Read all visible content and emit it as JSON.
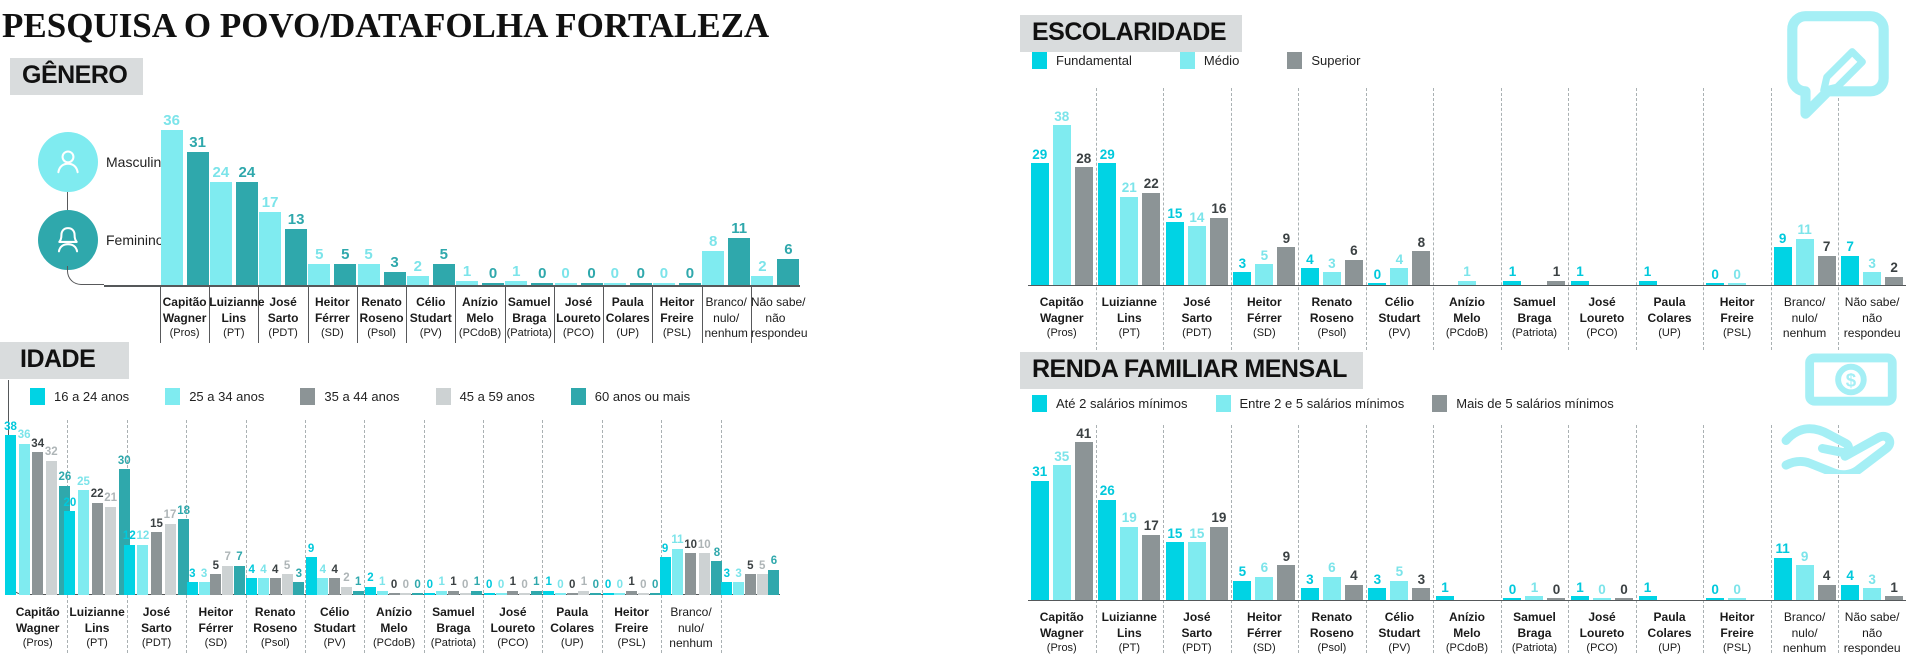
{
  "page_title": "PESQUISA O POVO/DATAFOLHA FORTALEZA",
  "colors": {
    "bright_cyan": "#00D3E4",
    "light_cyan": "#7FEBF0",
    "teal": "#2FA8AC",
    "dark_gray": "#8C9496",
    "light_gray": "#CDD2D3",
    "chip_bg": "#D9DCDD",
    "axis": "#55585A",
    "separator": "#AAB1B3",
    "icon_cyan": "#A5EFF5",
    "text": "#1A1A1A"
  },
  "icons": {
    "gender_male": "male-person-icon",
    "gender_female": "female-person-icon",
    "escolaridade": "speech-bubble-pencil-icon",
    "renda": "hand-holding-money-icon"
  },
  "chart_data": [
    {
      "id": "genero",
      "type": "bar",
      "title": "GÊNERO",
      "legend_position": "left-icons",
      "grid": false,
      "ylim": [
        0,
        40
      ],
      "series": [
        {
          "name": "Masculino",
          "color": "#7FEBF0",
          "label_color": "#7CE4EA"
        },
        {
          "name": "Feminino",
          "color": "#2FA8AC",
          "label_color": "#2FA8AC"
        }
      ],
      "categories": [
        "Capitão Wagner (Pros)",
        "Luizianne Lins (PT)",
        "José Sarto (PDT)",
        "Heitor Férrer (SD)",
        "Renato Roseno (Psol)",
        "Célio Studart (PV)",
        "Anízio Melo (PCdoB)",
        "Samuel Braga (Patriota)",
        "José Loureto (PCO)",
        "Paula Colares (UP)",
        "Heitor Freire (PSL)",
        "Branco/nulo/nenhum",
        "Não sabe/não respondeu"
      ],
      "groups": [
        {
          "label_lines": [
            "Capitão",
            "Wagner"
          ],
          "party": "(Pros)",
          "bold": true,
          "values": [
            36,
            31
          ]
        },
        {
          "label_lines": [
            "Luizianne",
            "Lins"
          ],
          "party": "(PT)",
          "bold": true,
          "values": [
            24,
            24
          ]
        },
        {
          "label_lines": [
            "José",
            "Sarto"
          ],
          "party": "(PDT)",
          "bold": true,
          "values": [
            17,
            13
          ]
        },
        {
          "label_lines": [
            "Heitor",
            "Férrer"
          ],
          "party": "(SD)",
          "bold": true,
          "values": [
            5,
            5
          ]
        },
        {
          "label_lines": [
            "Renato",
            "Roseno"
          ],
          "party": "(Psol)",
          "bold": true,
          "values": [
            5,
            3
          ]
        },
        {
          "label_lines": [
            "Célio",
            "Studart"
          ],
          "party": "(PV)",
          "bold": true,
          "values": [
            2,
            5
          ]
        },
        {
          "label_lines": [
            "Anízio",
            "Melo"
          ],
          "party": "(PCdoB)",
          "bold": true,
          "values": [
            1,
            0
          ]
        },
        {
          "label_lines": [
            "Samuel",
            "Braga"
          ],
          "party": "(Patriota)",
          "bold": true,
          "values": [
            1,
            0
          ]
        },
        {
          "label_lines": [
            "José",
            "Loureto"
          ],
          "party": "(PCO)",
          "bold": true,
          "values": [
            0,
            0
          ]
        },
        {
          "label_lines": [
            "Paula",
            "Colares"
          ],
          "party": "(UP)",
          "bold": true,
          "values": [
            0,
            0
          ]
        },
        {
          "label_lines": [
            "Heitor",
            "Freire"
          ],
          "party": "(PSL)",
          "bold": true,
          "values": [
            0,
            0
          ]
        },
        {
          "label_lines": [
            "Branco/",
            "nulo/",
            "nenhum"
          ],
          "party": "",
          "bold": false,
          "values": [
            8,
            11
          ]
        },
        {
          "label_lines": [
            "Não sabe/",
            "não",
            "respondeu"
          ],
          "party": "",
          "bold": false,
          "values": [
            2,
            6
          ]
        }
      ]
    },
    {
      "id": "idade",
      "type": "bar",
      "title": "IDADE",
      "legend_position": "top",
      "grid": false,
      "ylim": [
        0,
        40
      ],
      "series": [
        {
          "name": "16 a 24 anos",
          "color": "#00D3E4",
          "label_color": "#00C9DC"
        },
        {
          "name": "25 a 34 anos",
          "color": "#7FEBF0",
          "label_color": "#7CE4EA"
        },
        {
          "name": "35 a 44 anos",
          "color": "#8C9496",
          "label_color": "#3B4143"
        },
        {
          "name": "45 a 59 anos",
          "color": "#CDD2D3",
          "label_color": "#AEB5B7"
        },
        {
          "name": "60 anos ou mais",
          "color": "#2FA8AC",
          "label_color": "#2FA8AC"
        }
      ],
      "categories": [
        "Capitão Wagner (Pros)",
        "Luizianne Lins (PT)",
        "José Sarto (PDT)",
        "Heitor Férrer (SD)",
        "Renato Roseno (Psol)",
        "Célio Studart (PV)",
        "Anízio Melo (PCdoB)",
        "Samuel Braga (Patriota)",
        "José Loureto (PCO)",
        "Paula Colares (UP)",
        "Heitor Freire (PSL)",
        "Branco/nulo/nenhum",
        ""
      ],
      "groups": [
        {
          "label_lines": [
            "Capitão",
            "Wagner"
          ],
          "party": "(Pros)",
          "bold": true,
          "values": [
            38,
            36,
            34,
            32,
            26
          ]
        },
        {
          "label_lines": [
            "Luizianne",
            "Lins"
          ],
          "party": "(PT)",
          "bold": true,
          "values": [
            20,
            25,
            22,
            21,
            30
          ]
        },
        {
          "label_lines": [
            "José",
            "Sarto"
          ],
          "party": "(PDT)",
          "bold": true,
          "values": [
            12,
            12,
            15,
            17,
            18
          ]
        },
        {
          "label_lines": [
            "Heitor",
            "Férrer"
          ],
          "party": "(SD)",
          "bold": true,
          "values": [
            3,
            3,
            5,
            7,
            7
          ]
        },
        {
          "label_lines": [
            "Renato",
            "Roseno"
          ],
          "party": "(Psol)",
          "bold": true,
          "values": [
            4,
            4,
            4,
            5,
            3
          ]
        },
        {
          "label_lines": [
            "Célio",
            "Studart"
          ],
          "party": "(PV)",
          "bold": true,
          "values": [
            9,
            4,
            4,
            2,
            1
          ]
        },
        {
          "label_lines": [
            "Anízio",
            "Melo"
          ],
          "party": "(PCdoB)",
          "bold": true,
          "values": [
            2,
            1,
            0,
            0,
            0
          ]
        },
        {
          "label_lines": [
            "Samuel",
            "Braga"
          ],
          "party": "(Patriota)",
          "bold": true,
          "values": [
            0,
            1,
            1,
            0,
            1
          ]
        },
        {
          "label_lines": [
            "José",
            "Loureto"
          ],
          "party": "(PCO)",
          "bold": true,
          "values": [
            0,
            0,
            1,
            0,
            1
          ]
        },
        {
          "label_lines": [
            "Paula",
            "Colares"
          ],
          "party": "(UP)",
          "bold": true,
          "values": [
            1,
            0,
            0,
            1,
            0
          ]
        },
        {
          "label_lines": [
            "Heitor",
            "Freire"
          ],
          "party": "(PSL)",
          "bold": true,
          "values": [
            0,
            0,
            1,
            0,
            0
          ]
        },
        {
          "label_lines": [
            "Branco/",
            "nulo/",
            "nenhum"
          ],
          "party": "",
          "bold": false,
          "values": [
            9,
            11,
            10,
            10,
            8
          ]
        },
        {
          "label_lines": [],
          "party": "",
          "bold": false,
          "values": [
            3,
            3,
            5,
            5,
            6
          ]
        }
      ]
    },
    {
      "id": "escolaridade",
      "type": "bar",
      "title": "ESCOLARIDADE",
      "legend_position": "top",
      "grid": false,
      "ylim": [
        0,
        40
      ],
      "series": [
        {
          "name": "Fundamental",
          "color": "#00D3E4",
          "label_color": "#00C9DC"
        },
        {
          "name": "Médio",
          "color": "#7FEBF0",
          "label_color": "#7CE4EA"
        },
        {
          "name": "Superior",
          "color": "#8C9496",
          "label_color": "#3B4143"
        }
      ],
      "categories": [
        "Capitão Wagner (Pros)",
        "Luizianne Lins (PT)",
        "José Sarto (PDT)",
        "Heitor Férrer (SD)",
        "Renato Roseno (Psol)",
        "Célio Studart (PV)",
        "Anízio Melo (PCdoB)",
        "Samuel Braga (Patriota)",
        "José Loureto (PCO)",
        "Paula Colares (UP)",
        "Heitor Freire (PSL)",
        "Branco/nulo/nenhum",
        "Não sabe/não respondeu"
      ],
      "groups": [
        {
          "label_lines": [
            "Capitão",
            "Wagner"
          ],
          "party": "(Pros)",
          "bold": true,
          "values": [
            29,
            38,
            28
          ]
        },
        {
          "label_lines": [
            "Luizianne",
            "Lins"
          ],
          "party": "(PT)",
          "bold": true,
          "values": [
            29,
            21,
            22
          ]
        },
        {
          "label_lines": [
            "José",
            "Sarto"
          ],
          "party": "(PDT)",
          "bold": true,
          "values": [
            15,
            14,
            16
          ]
        },
        {
          "label_lines": [
            "Heitor",
            "Férrer"
          ],
          "party": "(SD)",
          "bold": true,
          "values": [
            3,
            5,
            9
          ]
        },
        {
          "label_lines": [
            "Renato",
            "Roseno"
          ],
          "party": "(Psol)",
          "bold": true,
          "values": [
            4,
            3,
            6
          ]
        },
        {
          "label_lines": [
            "Célio",
            "Studart"
          ],
          "party": "(PV)",
          "bold": true,
          "values": [
            0,
            4,
            8
          ]
        },
        {
          "label_lines": [
            "Anízio",
            "Melo"
          ],
          "party": "(PCdoB)",
          "bold": true,
          "values": [
            null,
            1,
            null
          ]
        },
        {
          "label_lines": [
            "Samuel",
            "Braga"
          ],
          "party": "(Patriota)",
          "bold": true,
          "values": [
            1,
            null,
            1
          ]
        },
        {
          "label_lines": [
            "José",
            "Loureto"
          ],
          "party": "(PCO)",
          "bold": true,
          "values": [
            1,
            null,
            null
          ]
        },
        {
          "label_lines": [
            "Paula",
            "Colares"
          ],
          "party": "(UP)",
          "bold": true,
          "values": [
            1,
            null,
            null
          ]
        },
        {
          "label_lines": [
            "Heitor",
            "Freire"
          ],
          "party": "(PSL)",
          "bold": true,
          "values": [
            0,
            0,
            null
          ]
        },
        {
          "label_lines": [
            "Branco/",
            "nulo/",
            "nenhum"
          ],
          "party": "",
          "bold": false,
          "values": [
            9,
            11,
            7
          ]
        },
        {
          "label_lines": [
            "Não sabe/",
            "não",
            "respondeu"
          ],
          "party": "",
          "bold": false,
          "values": [
            7,
            3,
            2
          ]
        }
      ]
    },
    {
      "id": "renda",
      "type": "bar",
      "title": "RENDA FAMILIAR MENSAL",
      "legend_position": "top",
      "grid": false,
      "ylim": [
        0,
        45
      ],
      "series": [
        {
          "name": "Até 2 salários mínimos",
          "color": "#00D3E4",
          "label_color": "#00C9DC"
        },
        {
          "name": "Entre 2 e 5 salários mínimos",
          "color": "#7FEBF0",
          "label_color": "#7CE4EA"
        },
        {
          "name": "Mais de 5 salários mínimos",
          "color": "#8C9496",
          "label_color": "#3B4143"
        }
      ],
      "categories": [
        "Capitão Wagner (Pros)",
        "Luizianne Lins (PT)",
        "José Sarto (PDT)",
        "Heitor Férrer (SD)",
        "Renato Roseno (Psol)",
        "Célio Studart (PV)",
        "Anízio Melo (PCdoB)",
        "Samuel Braga (Patriota)",
        "José Loureto (PCO)",
        "Paula Colares (UP)",
        "Heitor Freire (PSL)",
        "Branco/nulo/nenhum",
        "Não sabe/não respondeu"
      ],
      "groups": [
        {
          "label_lines": [
            "Capitão",
            "Wagner"
          ],
          "party": "(Pros)",
          "bold": true,
          "values": [
            31,
            35,
            41
          ]
        },
        {
          "label_lines": [
            "Luizianne",
            "Lins"
          ],
          "party": "(PT)",
          "bold": true,
          "values": [
            26,
            19,
            17
          ]
        },
        {
          "label_lines": [
            "José",
            "Sarto"
          ],
          "party": "(PDT)",
          "bold": true,
          "values": [
            15,
            15,
            19
          ]
        },
        {
          "label_lines": [
            "Heitor",
            "Férrer"
          ],
          "party": "(SD)",
          "bold": true,
          "values": [
            5,
            6,
            9
          ]
        },
        {
          "label_lines": [
            "Renato",
            "Roseno"
          ],
          "party": "(Psol)",
          "bold": true,
          "values": [
            3,
            6,
            4
          ]
        },
        {
          "label_lines": [
            "Célio",
            "Studart"
          ],
          "party": "(PV)",
          "bold": true,
          "values": [
            3,
            5,
            3
          ]
        },
        {
          "label_lines": [
            "Anízio",
            "Melo"
          ],
          "party": "(PCdoB)",
          "bold": true,
          "values": [
            1,
            null,
            null
          ]
        },
        {
          "label_lines": [
            "Samuel",
            "Braga"
          ],
          "party": "(Patriota)",
          "bold": true,
          "values": [
            0,
            1,
            0
          ]
        },
        {
          "label_lines": [
            "José",
            "Loureto"
          ],
          "party": "(PCO)",
          "bold": true,
          "values": [
            1,
            0,
            0
          ]
        },
        {
          "label_lines": [
            "Paula",
            "Colares"
          ],
          "party": "(UP)",
          "bold": true,
          "values": [
            1,
            null,
            null
          ]
        },
        {
          "label_lines": [
            "Heitor",
            "Freire"
          ],
          "party": "(PSL)",
          "bold": true,
          "values": [
            0,
            0,
            null
          ]
        },
        {
          "label_lines": [
            "Branco/",
            "nulo/",
            "nenhum"
          ],
          "party": "",
          "bold": false,
          "values": [
            11,
            9,
            4
          ]
        },
        {
          "label_lines": [
            "Não sabe/",
            "não",
            "respondeu"
          ],
          "party": "",
          "bold": false,
          "values": [
            4,
            3,
            1
          ]
        }
      ]
    }
  ]
}
